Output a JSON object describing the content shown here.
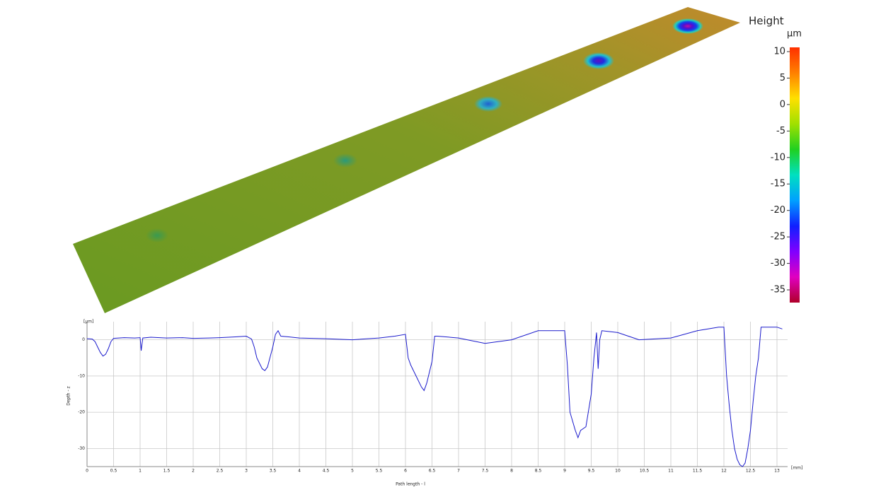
{
  "chart_data": [
    {
      "type": "colorbar",
      "title": "Height",
      "unit": "µm",
      "ylim": [
        -37.4,
        10.8
      ],
      "yticks": [
        10,
        5,
        0,
        -5,
        -10,
        -15,
        -20,
        -25,
        -30,
        -35
      ],
      "colors": [
        "#b0002a",
        "#e000c0",
        "#8000ff",
        "#1020ff",
        "#00a0ff",
        "#00e0c0",
        "#20d020",
        "#a0e000",
        "#ffe000",
        "#ff8000",
        "#ff3000"
      ]
    },
    {
      "type": "line",
      "y_label": "Depth - z",
      "y_unit": "[µm]",
      "x_label": "Path length - l",
      "x_unit": "[mm]",
      "color": "#1a1acc",
      "grid": true,
      "xlim": [
        0,
        13.2
      ],
      "ylim": [
        -35,
        5
      ],
      "xticks": [
        0,
        0.5,
        1,
        1.5,
        2,
        2.5,
        3,
        3.5,
        4,
        4.5,
        5,
        5.5,
        6,
        6.5,
        7,
        7.5,
        8,
        8.5,
        9,
        9.5,
        10,
        10.5,
        11,
        11.5,
        12,
        12.5,
        13
      ],
      "yticks": [
        0,
        -10,
        -20,
        -30
      ],
      "x": [
        0,
        0.1,
        0.15,
        0.2,
        0.25,
        0.3,
        0.35,
        0.4,
        0.45,
        0.5,
        0.7,
        0.9,
        1.0,
        1.02,
        1.05,
        1.2,
        1.5,
        1.8,
        2.0,
        2.3,
        2.5,
        2.8,
        3.0,
        3.1,
        3.15,
        3.2,
        3.3,
        3.35,
        3.4,
        3.5,
        3.55,
        3.6,
        3.65,
        3.8,
        4.0,
        4.5,
        5.0,
        5.5,
        5.8,
        6.0,
        6.05,
        6.1,
        6.2,
        6.3,
        6.35,
        6.4,
        6.5,
        6.55,
        6.6,
        7.0,
        7.5,
        8.0,
        8.5,
        8.9,
        9.0,
        9.05,
        9.1,
        9.2,
        9.25,
        9.3,
        9.4,
        9.5,
        9.55,
        9.6,
        9.63,
        9.66,
        9.7,
        10.0,
        10.4,
        11.0,
        11.5,
        11.9,
        12.0,
        12.05,
        12.1,
        12.15,
        12.2,
        12.25,
        12.3,
        12.35,
        12.4,
        12.45,
        12.5,
        12.55,
        12.6,
        12.65,
        12.7,
        13.0,
        13.1
      ],
      "values": [
        0.3,
        0.2,
        -0.5,
        -2,
        -3.5,
        -4.5,
        -4,
        -2.5,
        -0.5,
        0.4,
        0.6,
        0.5,
        0.6,
        -3,
        0.5,
        0.7,
        0.5,
        0.6,
        0.4,
        0.5,
        0.6,
        0.8,
        1,
        0.2,
        -2,
        -5,
        -8,
        -8.5,
        -7.5,
        -2,
        1.5,
        2.5,
        1,
        0.8,
        0.5,
        0.3,
        0,
        0.5,
        1,
        1.5,
        -5,
        -7,
        -10,
        -13,
        -14,
        -12,
        -6,
        1,
        1,
        0.5,
        -1,
        0,
        2.5,
        2.5,
        2.5,
        -7,
        -20,
        -25,
        -27,
        -25,
        -24,
        -15,
        -5,
        2,
        -8,
        0,
        2.5,
        2,
        0,
        0.5,
        2.5,
        3.5,
        3.5,
        -10,
        -18,
        -25,
        -30,
        -33,
        -34.5,
        -35,
        -34,
        -30,
        -25,
        -17,
        -10,
        -5,
        3.5,
        3.5,
        3
      ]
    }
  ]
}
